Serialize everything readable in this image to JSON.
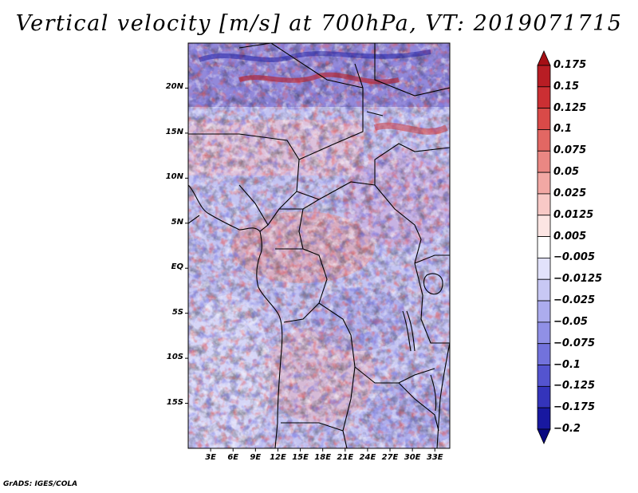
{
  "title": "Vertical velocity [m/s] at 700hPa, VT: 2019071715",
  "map": {
    "lat_labels": [
      "20N",
      "15N",
      "10N",
      "5N",
      "EQ",
      "5S",
      "10S",
      "15S"
    ],
    "lon_labels": [
      "3E",
      "6E",
      "9E",
      "12E",
      "15E",
      "18E",
      "21E",
      "24E",
      "27E",
      "30E",
      "33E"
    ],
    "lat_range": [
      -20,
      25
    ],
    "lon_range": [
      0,
      35
    ]
  },
  "colorbar": {
    "labels": [
      "0.175",
      "0.15",
      "0.125",
      "0.1",
      "0.075",
      "0.05",
      "0.025",
      "0.0125",
      "0.005",
      "−0.005",
      "−0.0125",
      "−0.025",
      "−0.05",
      "−0.075",
      "−0.1",
      "−0.125",
      "−0.175",
      "−0.2"
    ],
    "colors": [
      "#a50f15",
      "#b81d24",
      "#cb2f33",
      "#d94a48",
      "#e26763",
      "#ea8783",
      "#f2a8a4",
      "#f8c9c6",
      "#fce5e3",
      "#ffffff",
      "#e2e2fb",
      "#c8c8f4",
      "#acacee",
      "#9090e6",
      "#7272dc",
      "#5454cf",
      "#3434bb",
      "#1818a0",
      "#080880"
    ]
  },
  "footer": "GrADS: IGES/COLA"
}
